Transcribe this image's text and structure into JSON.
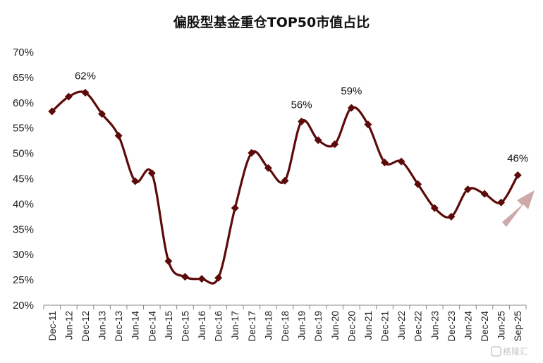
{
  "chart_data": {
    "type": "line",
    "title": "偏股型基金重仓TOP50市值占比",
    "xlabel": "",
    "ylabel": "",
    "ylim": [
      20,
      70
    ],
    "y_ticks": [
      "20%",
      "25%",
      "30%",
      "35%",
      "40%",
      "45%",
      "50%",
      "55%",
      "60%",
      "65%",
      "70%"
    ],
    "categories": [
      "Dec-11",
      "Jun-12",
      "Dec-12",
      "Jun-13",
      "Dec-13",
      "Jun-14",
      "Dec-14",
      "Jun-15",
      "Dec-15",
      "Jun-16",
      "Dec-16",
      "Jun-17",
      "Dec-17",
      "Jun-18",
      "Dec-18",
      "Jun-19",
      "Dec-19",
      "Jun-20",
      "Dec-20",
      "Jun-21",
      "Dec-21",
      "Jun-22",
      "Dec-22",
      "Jun-23",
      "Dec-23",
      "Jun-24",
      "Dec-24",
      "Jun-25",
      "Sep-25"
    ],
    "series": [
      {
        "color": "#5c0a0a",
        "values": [
          58.3,
          61.2,
          62.0,
          57.8,
          53.5,
          44.5,
          46.1,
          28.7,
          25.6,
          25.2,
          25.4,
          39.2,
          50.1,
          47.1,
          44.6,
          56.3,
          52.6,
          51.8,
          59.0,
          55.7,
          48.2,
          48.4,
          43.9,
          39.2,
          37.5,
          42.9,
          42.0,
          40.3,
          45.7
        ]
      }
    ],
    "annotations": [
      {
        "index": 2,
        "text": "62%"
      },
      {
        "index": 15,
        "text": "56%"
      },
      {
        "index": 18,
        "text": "59%"
      },
      {
        "index": 28,
        "text": "46%"
      }
    ],
    "grid": false,
    "arrow_color": "#c9a0a0"
  },
  "watermark": {
    "text": "格隆汇"
  }
}
